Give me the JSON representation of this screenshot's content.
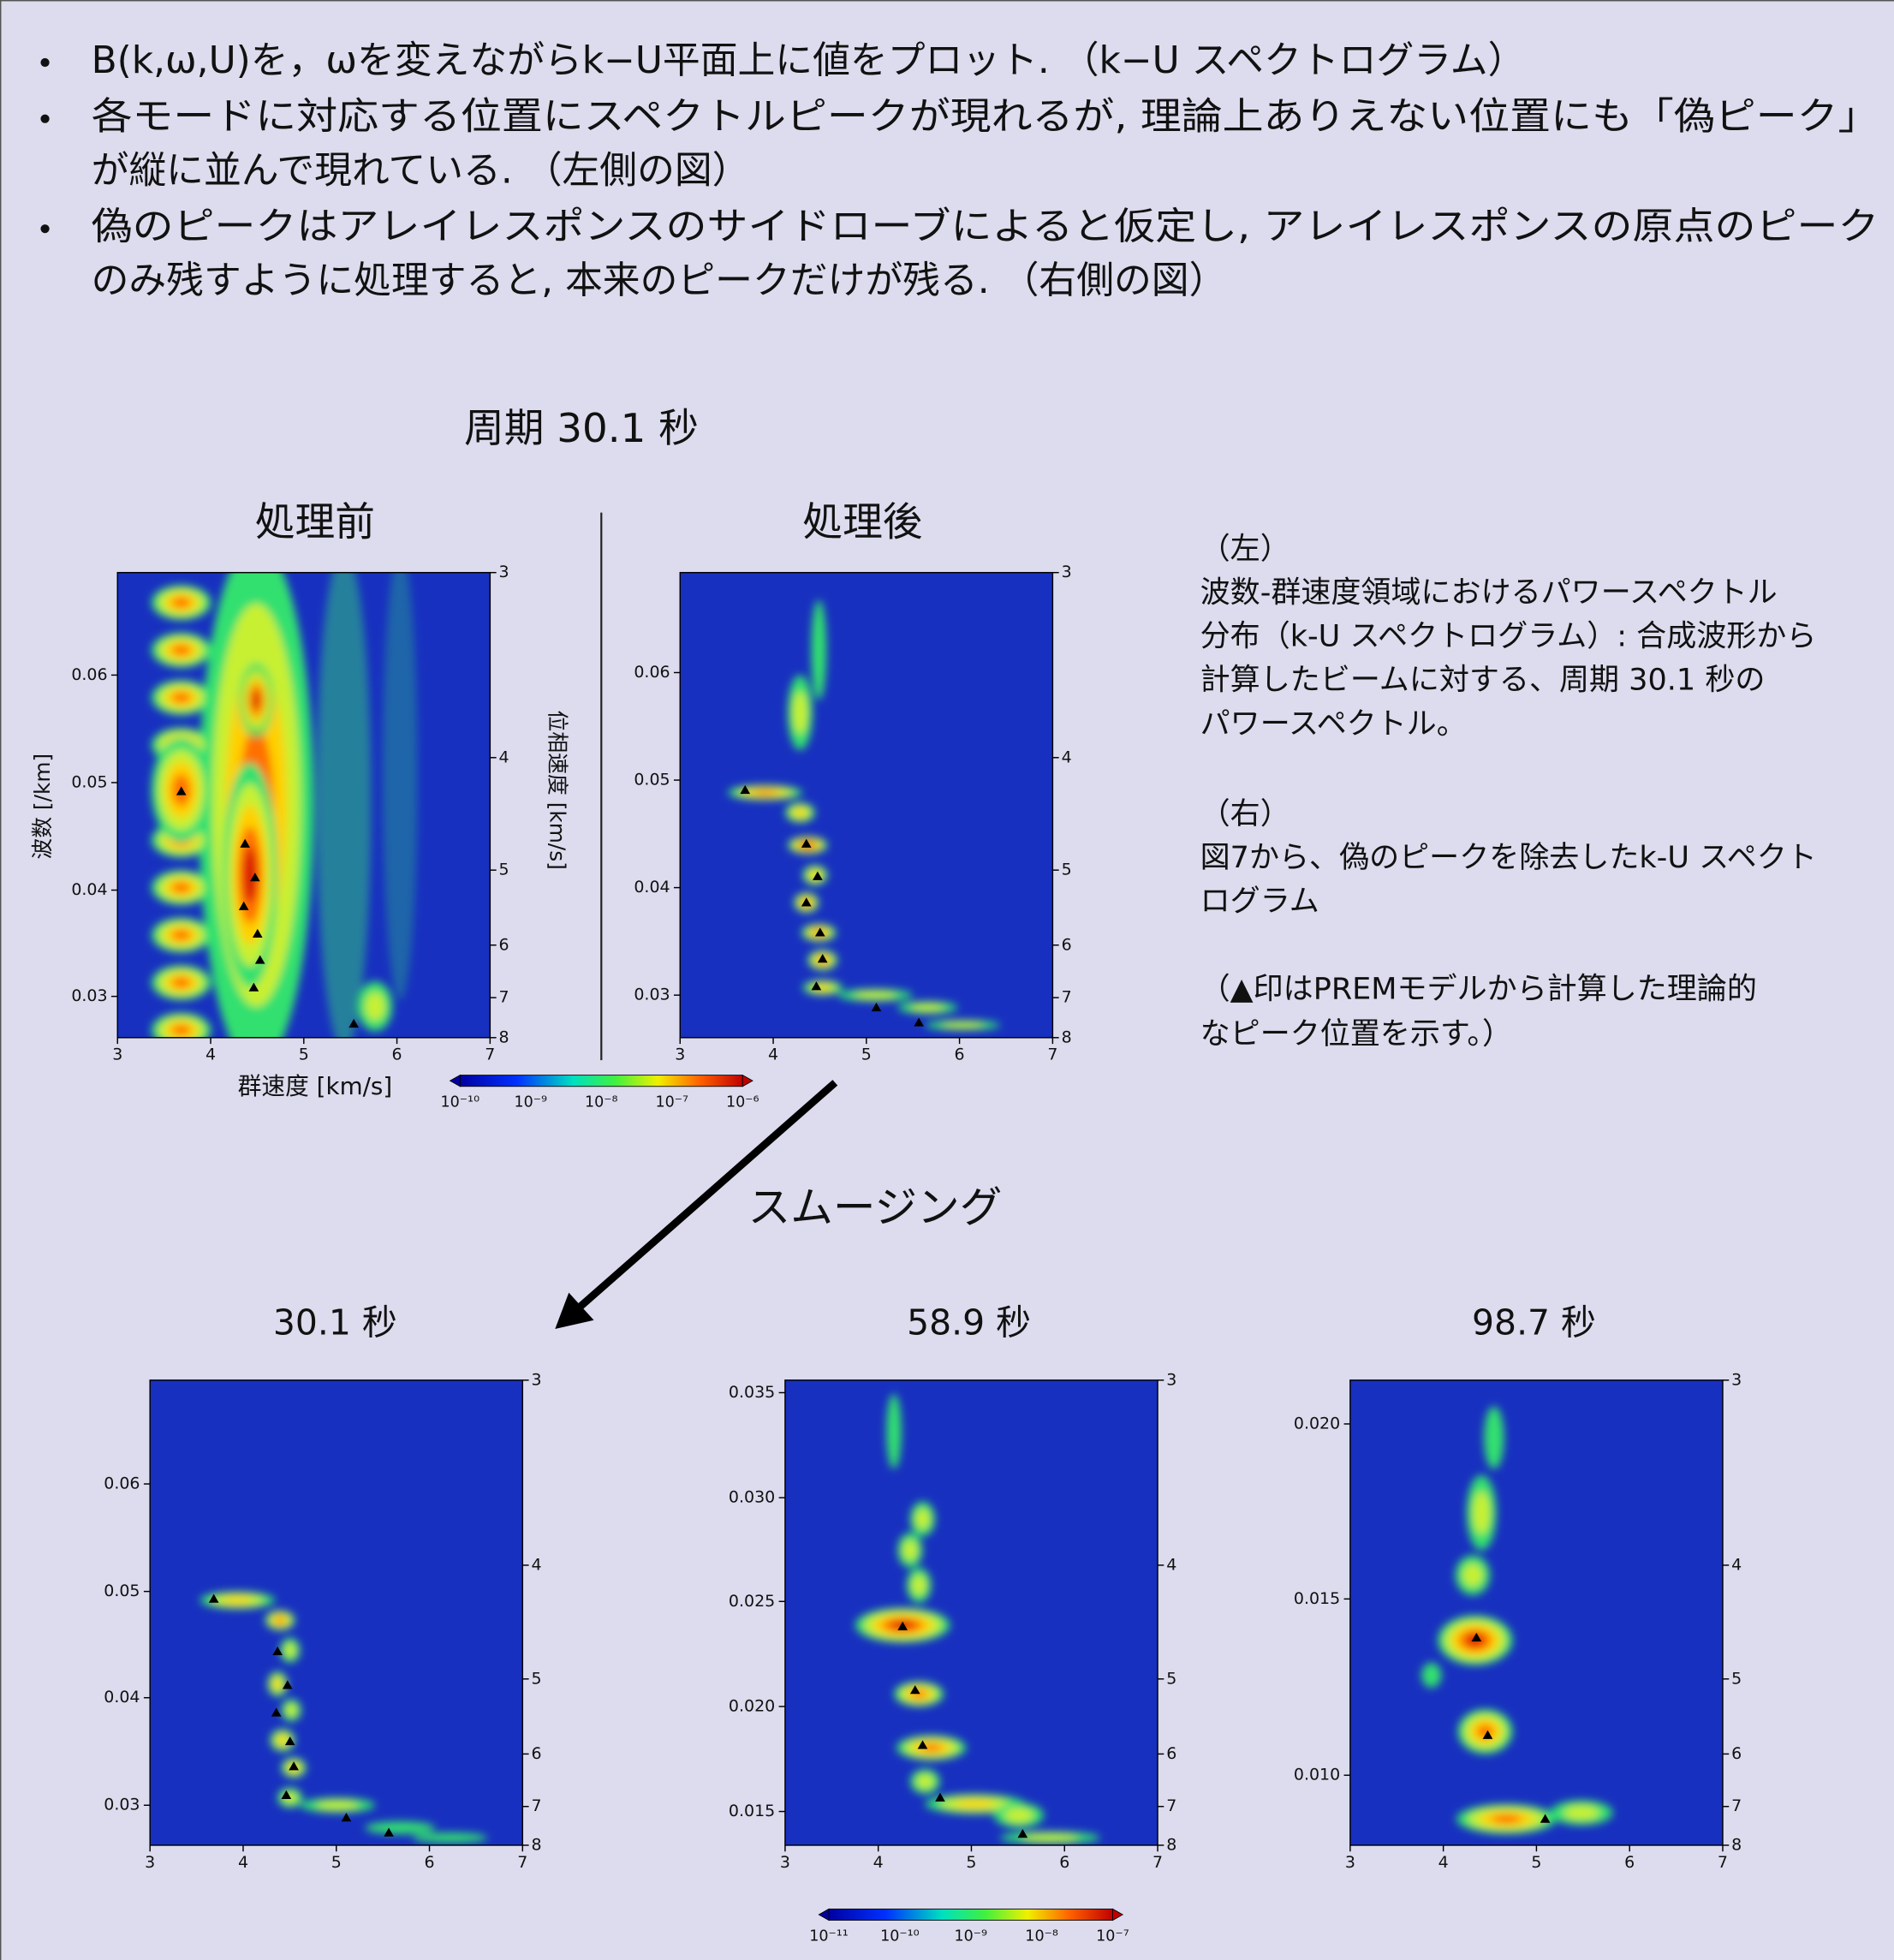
{
  "bullets": [
    [
      "B(k,ω,U)を，ωを変えながらk−U平面上に値をプロット. （k−U スペクトログラム）"
    ],
    [
      "各モードに対応する位置にスペクトルピークが現れるが, 理論上ありえない位置にも「偽ピーク」",
      "が縦に並んで現れている. （左側の図）"
    ],
    [
      "偽のピークはアレイレスポンスのサイドローブによると仮定し, アレイレスポンスの原点のピーク",
      "のみ残すように処理すると, 本来のピークだけが残る. （右側の図）"
    ]
  ],
  "period_title": "周期 30.1 秒",
  "panels": {
    "before": "処理前",
    "after": "処理後"
  },
  "top_plots": {
    "y_label": "波数 [/km]",
    "y2_label": "位相速度 [km/s]",
    "x_label": "群速度 [km/s]",
    "yticks": [
      "0.06",
      "0.05",
      "0.04",
      "0.03"
    ],
    "y2ticks": [
      "3",
      "4",
      "5",
      "6",
      "7",
      "8"
    ],
    "xticks": [
      "3",
      "4",
      "5",
      "6",
      "7"
    ]
  },
  "colorbar_top": [
    "10⁻¹⁰",
    "10⁻⁹",
    "10⁻⁸",
    "10⁻⁷",
    "10⁻⁶"
  ],
  "caption": {
    "left": [
      "（左）",
      "波数-群速度領域におけるパワースペクトル",
      "分布（k-U スペクトログラム）: 合成波形から",
      "計算したビームに対する、周期 30.1 秒の",
      "パワースペクトル。"
    ],
    "right": [
      "（右）",
      "図7から、偽のピークを除去したk-U スペクト",
      "ログラム"
    ],
    "note": [
      "（▲印はPREMモデルから計算した理論的",
      "なピーク位置を示す。）"
    ]
  },
  "smoothing_label": "スムージング",
  "bottom_plots": {
    "xticks": [
      "3",
      "4",
      "5",
      "6",
      "7"
    ],
    "y2ticks": [
      "3",
      "4",
      "5",
      "6",
      "7",
      "8"
    ],
    "plots": [
      {
        "title": "30.1 秒",
        "yticks": [
          "0.06",
          "0.05",
          "0.04",
          "0.03"
        ]
      },
      {
        "title": "58.9 秒",
        "yticks": [
          "0.035",
          "0.030",
          "0.025",
          "0.020",
          "0.015"
        ]
      },
      {
        "title": "98.7 秒",
        "yticks": [
          "0.020",
          "0.015",
          "0.010"
        ]
      }
    ]
  },
  "colorbar_bottom": [
    "10⁻¹¹",
    "10⁻¹⁰",
    "10⁻⁹",
    "10⁻⁸",
    "10⁻⁷"
  ]
}
